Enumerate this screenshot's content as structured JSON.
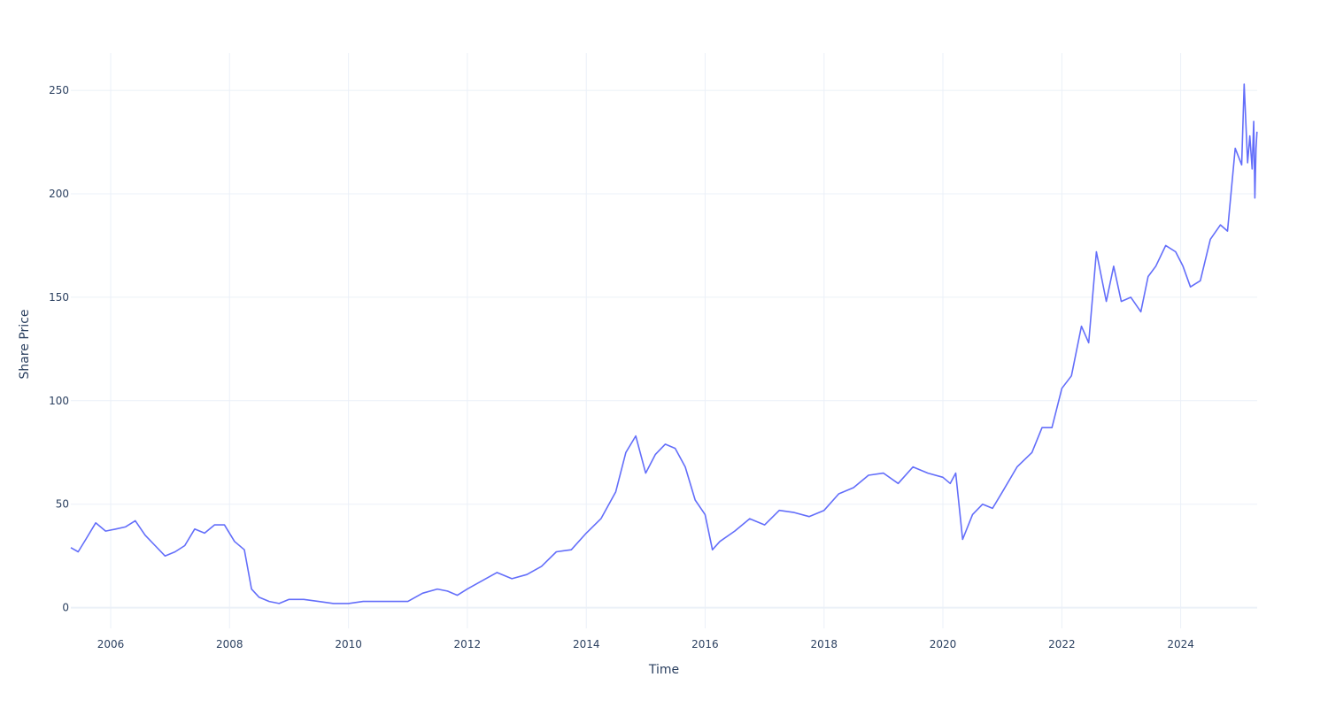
{
  "chart_data": {
    "type": "line",
    "title": "",
    "xlabel": "Time",
    "ylabel": "Share Price",
    "xlim": [
      "2005-05-01",
      "2025-04-15"
    ],
    "ylim": [
      -10,
      268
    ],
    "grid": true,
    "legend": "none",
    "xticks": [
      "2006",
      "2008",
      "2010",
      "2012",
      "2014",
      "2016",
      "2018",
      "2020",
      "2022",
      "2024"
    ],
    "yticks": [
      "0",
      "50",
      "100",
      "150",
      "200",
      "250"
    ],
    "line_color": "#636efa",
    "series": [
      {
        "x": [
          "2005-05-01",
          "2005-06-15",
          "2005-08-01",
          "2005-10-01",
          "2005-12-01",
          "2006-02-01",
          "2006-04-01",
          "2006-06-01",
          "2006-08-01",
          "2006-10-01",
          "2006-12-01",
          "2007-02-01",
          "2007-04-01",
          "2007-06-01",
          "2007-08-01",
          "2007-10-01",
          "2007-12-01",
          "2008-02-01",
          "2008-04-01",
          "2008-05-15",
          "2008-07-01",
          "2008-09-01",
          "2008-11-01",
          "2009-01-01",
          "2009-04-01",
          "2009-07-01",
          "2009-10-01",
          "2010-01-01",
          "2010-04-01",
          "2010-07-01",
          "2010-10-01",
          "2011-01-01",
          "2011-04-01",
          "2011-07-01",
          "2011-09-01",
          "2011-11-01",
          "2012-01-01",
          "2012-04-01",
          "2012-07-01",
          "2012-10-01",
          "2013-01-01",
          "2013-04-01",
          "2013-07-01",
          "2013-10-01",
          "2014-01-01",
          "2014-04-01",
          "2014-07-01",
          "2014-09-01",
          "2014-11-01",
          "2015-01-01",
          "2015-03-01",
          "2015-05-01",
          "2015-07-01",
          "2015-09-01",
          "2015-11-01",
          "2016-01-01",
          "2016-02-15",
          "2016-04-01",
          "2016-07-01",
          "2016-10-01",
          "2017-01-01",
          "2017-04-01",
          "2017-07-01",
          "2017-10-01",
          "2018-01-01",
          "2018-04-01",
          "2018-07-01",
          "2018-10-01",
          "2019-01-01",
          "2019-04-01",
          "2019-07-01",
          "2019-10-01",
          "2020-01-01",
          "2020-02-15",
          "2020-03-20",
          "2020-05-01",
          "2020-07-01",
          "2020-09-01",
          "2020-11-01",
          "2021-01-01",
          "2021-04-01",
          "2021-07-01",
          "2021-09-01",
          "2021-11-01",
          "2022-01-01",
          "2022-03-01",
          "2022-05-01",
          "2022-06-15",
          "2022-08-01",
          "2022-10-01",
          "2022-11-15",
          "2023-01-01",
          "2023-03-01",
          "2023-05-01",
          "2023-06-15",
          "2023-08-01",
          "2023-10-01",
          "2023-12-01",
          "2024-01-15",
          "2024-03-01",
          "2024-05-01",
          "2024-07-01",
          "2024-09-01",
          "2024-10-15",
          "2024-12-01",
          "2025-01-10",
          "2025-01-25",
          "2025-02-15",
          "2025-03-01",
          "2025-03-15",
          "2025-03-25",
          "2025-04-01",
          "2025-04-08",
          "2025-04-14"
        ],
        "y": [
          29,
          27,
          33,
          41,
          37,
          38,
          39,
          42,
          35,
          30,
          25,
          27,
          30,
          38,
          36,
          40,
          40,
          32,
          28,
          9,
          5,
          3,
          2,
          4,
          4,
          3,
          2,
          2,
          3,
          3,
          3,
          3,
          7,
          9,
          8,
          6,
          9,
          13,
          17,
          14,
          16,
          20,
          27,
          28,
          36,
          43,
          56,
          75,
          83,
          65,
          74,
          79,
          77,
          68,
          52,
          45,
          28,
          32,
          37,
          43,
          40,
          47,
          46,
          44,
          47,
          55,
          58,
          64,
          65,
          60,
          68,
          65,
          63,
          60,
          65,
          33,
          45,
          50,
          48,
          56,
          68,
          75,
          87,
          87,
          106,
          112,
          136,
          128,
          172,
          148,
          165,
          148,
          150,
          143,
          160,
          165,
          175,
          172,
          165,
          155,
          158,
          178,
          185,
          182,
          222,
          214,
          253,
          215,
          228,
          212,
          235,
          198,
          222,
          230
        ]
      }
    ]
  }
}
